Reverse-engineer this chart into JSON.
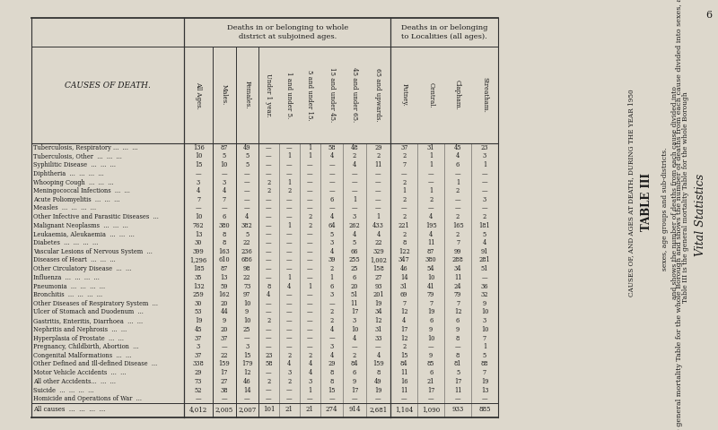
{
  "page_number": "6",
  "vital_statistics": "Vital Statistics",
  "desc_line1": "Table III is the general mortality Table for the whole Borough",
  "desc_line2": "and shows the number of deaths from each cause divided into",
  "desc_line3": "sexes, age groups and sub-districts.",
  "table_title": "TABLE III",
  "rotated_label": "CAUSES OF, AND AGES AT DEATH, DURING THE YEAR 1950",
  "header1_left": "Deaths in or belonging to whole\ndistrict at subjoined ages.",
  "header1_right": "Deaths in or belonging\nto Localities (all ages).",
  "col_headers": [
    "All Ages.",
    "Males.",
    "Females.",
    "Under 1 year.",
    "1 and under 5.",
    "5 and under 15.",
    "15 and under 45.",
    "45 and under 65.",
    "65 and upwards.",
    "Putney.",
    "Central.",
    "Clapham.",
    "Streatham."
  ],
  "row_label_header": "CAUSES OF DEATH.",
  "rows": [
    {
      "cause": "Tuberculosis, Respiratory ...  ...  ...",
      "dots": "...",
      "vals": [
        "136",
        "87",
        "49",
        "—",
        "—",
        "1",
        "58",
        "48",
        "29",
        "37",
        "31",
        "45",
        "23"
      ]
    },
    {
      "cause": "Tuberculosis, Other  ...  ...  ...",
      "vals": [
        "10",
        "5",
        "5",
        "—",
        "1",
        "1",
        "4",
        "2",
        "2",
        "2",
        "1",
        "4",
        "3"
      ]
    },
    {
      "cause": "Syphilitic Disease  ...  ...  ...",
      "vals": [
        "15",
        "10",
        "5",
        "—",
        "—",
        "—",
        "—",
        "4",
        "11",
        "7",
        "1",
        "6",
        "1"
      ]
    },
    {
      "cause": "Diphtheria  ...  ...  ...  ...",
      "vals": [
        "—",
        "—",
        "—",
        "—",
        "—",
        "—",
        "—",
        "—",
        "—",
        "—",
        "—",
        "—",
        "—"
      ]
    },
    {
      "cause": "Whooping Cough  ...  ...  ...",
      "vals": [
        "3",
        "3",
        "—",
        "2",
        "1",
        "—",
        "—",
        "—",
        "—",
        "2",
        "—",
        "1",
        "—"
      ]
    },
    {
      "cause": "Meningococcal Infections  ...  ...",
      "vals": [
        "4",
        "4",
        "—",
        "2",
        "2",
        "—",
        "—",
        "—",
        "—",
        "1",
        "1",
        "2",
        "—"
      ]
    },
    {
      "cause": "Acute Poliomyelitis  ...  ...  ...",
      "vals": [
        "7",
        "7",
        "—",
        "—",
        "—",
        "—",
        "6",
        "1",
        "—",
        "2",
        "2",
        "—",
        "3"
      ]
    },
    {
      "cause": "Measles  ...  ...  ...  ...",
      "vals": [
        "—",
        "—",
        "—",
        "—",
        "—",
        "—",
        "—",
        "—",
        "—",
        "—",
        "—",
        "—",
        "—"
      ]
    },
    {
      "cause": "Other Infective and Parasitic Diseases  ...",
      "vals": [
        "10",
        "6",
        "4",
        "—",
        "—",
        "2",
        "4",
        "3",
        "1",
        "2",
        "4",
        "2",
        "2"
      ]
    },
    {
      "cause": "Malignant Neoplasms  ...  ...  ...",
      "vals": [
        "762",
        "380",
        "382",
        "—",
        "1",
        "2",
        "64",
        "262",
        "433",
        "221",
        "195",
        "165",
        "181"
      ]
    },
    {
      "cause": "Leukaemia, Aleukaemia  ...  ...  ...",
      "vals": [
        "13",
        "8",
        "5",
        "—",
        "—",
        "—",
        "5",
        "4",
        "4",
        "2",
        "4",
        "2",
        "5"
      ]
    },
    {
      "cause": "Diabetes  ...  ...  ...  ...",
      "vals": [
        "30",
        "8",
        "22",
        "—",
        "—",
        "—",
        "3",
        "5",
        "22",
        "8",
        "11",
        "7",
        "4"
      ]
    },
    {
      "cause": "Vascular Lesions of Nervous System  ...",
      "vals": [
        "399",
        "163",
        "236",
        "—",
        "—",
        "—",
        "4",
        "66",
        "329",
        "122",
        "87",
        "99",
        "91"
      ]
    },
    {
      "cause": "Diseases of Heart  ...  ...  ...",
      "vals": [
        "1,296",
        "610",
        "686",
        "—",
        "—",
        "—",
        "39",
        "255",
        "1,002",
        "347",
        "380",
        "288",
        "281"
      ]
    },
    {
      "cause": "Other Circulatory Disease  ...  ...",
      "vals": [
        "185",
        "87",
        "98",
        "—",
        "—",
        "—",
        "2",
        "25",
        "158",
        "46",
        "54",
        "34",
        "51"
      ]
    },
    {
      "cause": "Influenza  ...  ...  ...  ...",
      "vals": [
        "35",
        "13",
        "22",
        "—",
        "1",
        "—",
        "1",
        "6",
        "27",
        "14",
        "10",
        "11",
        "—"
      ]
    },
    {
      "cause": "Pneumonia  ...  ...  ...  ...",
      "vals": [
        "132",
        "59",
        "73",
        "8",
        "4",
        "1",
        "6",
        "20",
        "93",
        "31",
        "41",
        "24",
        "36"
      ]
    },
    {
      "cause": "Bronchitis  ...  ...  ...  ...",
      "vals": [
        "259",
        "162",
        "97",
        "4",
        "—",
        "—",
        "3",
        "51",
        "201",
        "69",
        "79",
        "79",
        "32"
      ]
    },
    {
      "cause": "Other Diseases of Respiratory System  ...",
      "vals": [
        "30",
        "20",
        "10",
        "—",
        "—",
        "—",
        "—",
        "11",
        "19",
        "7",
        "7",
        "7",
        "9"
      ]
    },
    {
      "cause": "Ulcer of Stomach and Duodenum  ...",
      "vals": [
        "53",
        "44",
        "9",
        "—",
        "—",
        "—",
        "2",
        "17",
        "34",
        "12",
        "19",
        "12",
        "10"
      ]
    },
    {
      "cause": "Gastritis, Enteritis, Diarrhoea  ...  ...",
      "vals": [
        "19",
        "9",
        "10",
        "2",
        "—",
        "—",
        "2",
        "3",
        "12",
        "4",
        "6",
        "6",
        "3"
      ]
    },
    {
      "cause": "Nephritis and Nephrosis  ...  ...",
      "vals": [
        "45",
        "20",
        "25",
        "—",
        "—",
        "—",
        "4",
        "10",
        "31",
        "17",
        "9",
        "9",
        "10"
      ]
    },
    {
      "cause": "Hyperplasia of Prostate  ...  ...",
      "vals": [
        "37",
        "37",
        "—",
        "—",
        "—",
        "—",
        "—",
        "4",
        "33",
        "12",
        "10",
        "8",
        "7"
      ]
    },
    {
      "cause": "Pregnancy, Childbirth, Abortion  ...",
      "vals": [
        "3",
        "—",
        "3",
        "—",
        "—",
        "—",
        "3",
        "—",
        "—",
        "2",
        "—",
        "—",
        "1"
      ]
    },
    {
      "cause": "Congenital Malformations  ...  ...",
      "vals": [
        "37",
        "22",
        "15",
        "23",
        "2",
        "2",
        "4",
        "2",
        "4",
        "15",
        "9",
        "8",
        "5"
      ]
    },
    {
      "cause": "Other Defined and Ill-defined Disease  ...",
      "vals": [
        "338",
        "159",
        "179",
        "58",
        "4",
        "4",
        "29",
        "84",
        "159",
        "84",
        "85",
        "81",
        "88"
      ]
    },
    {
      "cause": "Motor Vehicle Accidents  ...  ...",
      "vals": [
        "29",
        "17",
        "12",
        "—",
        "3",
        "4",
        "8",
        "6",
        "8",
        "11",
        "6",
        "5",
        "7"
      ]
    },
    {
      "cause": "All other Accidents...  ...  ...",
      "vals": [
        "73",
        "27",
        "46",
        "2",
        "2",
        "3",
        "8",
        "9",
        "49",
        "16",
        "21",
        "17",
        "19"
      ]
    },
    {
      "cause": "Suicide  ...  ...  ...  ...",
      "vals": [
        "52",
        "38",
        "14",
        "—",
        "—",
        "1",
        "15",
        "17",
        "19",
        "11",
        "17",
        "11",
        "13"
      ]
    },
    {
      "cause": "Homicide and Operations of War  ...",
      "vals": [
        "—",
        "—",
        "—",
        "—",
        "—",
        "—",
        "—",
        "—",
        "—",
        "—",
        "—",
        "—",
        "—"
      ]
    }
  ],
  "total_row": {
    "cause": "All causes  ...  ...  ...  ...",
    "vals": [
      "4,012",
      "2,005",
      "2,007",
      "101",
      "21",
      "21",
      "274",
      "914",
      "2,681",
      "1,104",
      "1,090",
      "933",
      "885"
    ]
  },
  "bg_color": "#ddd8cc",
  "text_color": "#1a1a1a",
  "line_color": "#333333"
}
